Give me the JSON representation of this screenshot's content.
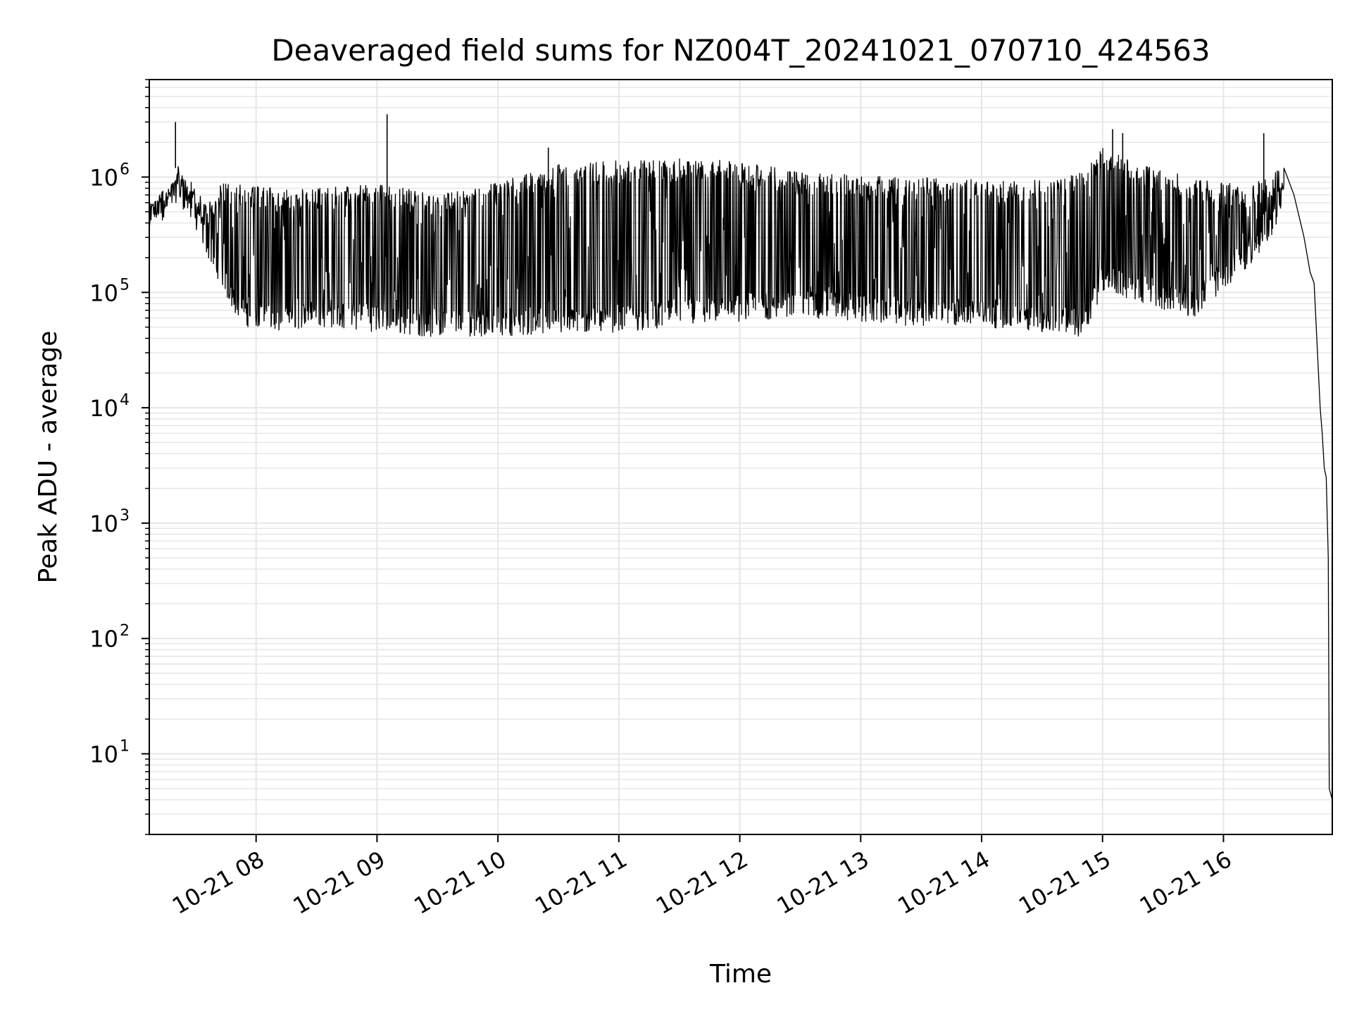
{
  "chart_data": {
    "type": "line",
    "title": "Deaveraged field sums for NZ004T_20241021_070710_424563",
    "xlabel": "Time",
    "ylabel": "Peak ADU - average",
    "yscale": "log",
    "ylim": [
      2,
      7000000
    ],
    "xlim": [
      "2024-10-21 07:07",
      "2024-10-21 16:54"
    ],
    "grid": true,
    "line_color": "#000000",
    "grid_color": "#e6e6e6",
    "y_ticks": [
      {
        "value": 10,
        "base": "10",
        "exp": "1"
      },
      {
        "value": 100,
        "base": "10",
        "exp": "2"
      },
      {
        "value": 1000,
        "base": "10",
        "exp": "3"
      },
      {
        "value": 10000,
        "base": "10",
        "exp": "4"
      },
      {
        "value": 100000,
        "base": "10",
        "exp": "5"
      },
      {
        "value": 1000000,
        "base": "10",
        "exp": "6"
      }
    ],
    "x_ticks": [
      {
        "time": "2024-10-21 08:00",
        "label": "10-21 08"
      },
      {
        "time": "2024-10-21 09:00",
        "label": "10-21 09"
      },
      {
        "time": "2024-10-21 10:00",
        "label": "10-21 10"
      },
      {
        "time": "2024-10-21 11:00",
        "label": "10-21 11"
      },
      {
        "time": "2024-10-21 12:00",
        "label": "10-21 12"
      },
      {
        "time": "2024-10-21 13:00",
        "label": "10-21 13"
      },
      {
        "time": "2024-10-21 14:00",
        "label": "10-21 14"
      },
      {
        "time": "2024-10-21 15:00",
        "label": "10-21 15"
      },
      {
        "time": "2024-10-21 16:00",
        "label": "10-21 16"
      }
    ],
    "series": [
      {
        "envelope": [
          {
            "time": "2024-10-21 07:07",
            "low": 350000,
            "high": 600000
          },
          {
            "time": "2024-10-21 07:15",
            "low": 400000,
            "high": 800000
          },
          {
            "time": "2024-10-21 07:20",
            "low": 600000,
            "high": 1400000
          },
          {
            "time": "2024-10-21 07:25",
            "low": 500000,
            "high": 1100000
          },
          {
            "time": "2024-10-21 07:30",
            "low": 350000,
            "high": 800000
          },
          {
            "time": "2024-10-21 07:36",
            "low": 200000,
            "high": 600000
          },
          {
            "time": "2024-10-21 07:42",
            "low": 120000,
            "high": 900000
          },
          {
            "time": "2024-10-21 07:48",
            "low": 70000,
            "high": 900000
          },
          {
            "time": "2024-10-21 07:55",
            "low": 50000,
            "high": 850000
          },
          {
            "time": "2024-10-21 08:10",
            "low": 45000,
            "high": 800000
          },
          {
            "time": "2024-10-21 08:30",
            "low": 50000,
            "high": 800000
          },
          {
            "time": "2024-10-21 09:00",
            "low": 45000,
            "high": 900000
          },
          {
            "time": "2024-10-21 09:30",
            "low": 40000,
            "high": 700000
          },
          {
            "time": "2024-10-21 10:00",
            "low": 42000,
            "high": 900000
          },
          {
            "time": "2024-10-21 10:30",
            "low": 42000,
            "high": 1300000
          },
          {
            "time": "2024-10-21 11:00",
            "low": 45000,
            "high": 1400000
          },
          {
            "time": "2024-10-21 11:30",
            "low": 50000,
            "high": 1450000
          },
          {
            "time": "2024-10-21 12:00",
            "low": 55000,
            "high": 1400000
          },
          {
            "time": "2024-10-21 12:30",
            "low": 60000,
            "high": 1100000
          },
          {
            "time": "2024-10-21 13:00",
            "low": 55000,
            "high": 1050000
          },
          {
            "time": "2024-10-21 13:30",
            "low": 50000,
            "high": 1000000
          },
          {
            "time": "2024-10-21 14:00",
            "low": 50000,
            "high": 950000
          },
          {
            "time": "2024-10-21 14:30",
            "low": 45000,
            "high": 950000
          },
          {
            "time": "2024-10-21 14:50",
            "low": 40000,
            "high": 1100000
          },
          {
            "time": "2024-10-21 15:00",
            "low": 100000,
            "high": 1800000
          },
          {
            "time": "2024-10-21 15:20",
            "low": 80000,
            "high": 1300000
          },
          {
            "time": "2024-10-21 15:45",
            "low": 60000,
            "high": 1000000
          },
          {
            "time": "2024-10-21 16:10",
            "low": 150000,
            "high": 850000
          },
          {
            "time": "2024-10-21 16:25",
            "low": 300000,
            "high": 1100000
          },
          {
            "time": "2024-10-21 16:30",
            "low": 700000,
            "high": 1250000
          }
        ],
        "tail": [
          {
            "time": "2024-10-21 16:30",
            "value": 1200000
          },
          {
            "time": "2024-10-21 16:35",
            "value": 700000
          },
          {
            "time": "2024-10-21 16:40",
            "value": 300000
          },
          {
            "time": "2024-10-21 16:43",
            "value": 150000
          },
          {
            "time": "2024-10-21 16:45",
            "value": 120000
          },
          {
            "time": "2024-10-21 16:48",
            "value": 10000
          },
          {
            "time": "2024-10-21 16:49",
            "value": 6000
          },
          {
            "time": "2024-10-21 16:50",
            "value": 3000
          },
          {
            "time": "2024-10-21 16:51",
            "value": 2500
          },
          {
            "time": "2024-10-21 16:52",
            "value": 500
          },
          {
            "time": "2024-10-21 16:52:30",
            "value": 5
          },
          {
            "time": "2024-10-21 16:54",
            "value": 4
          }
        ],
        "spikes": [
          {
            "time": "2024-10-21 07:20",
            "value": 3000000
          },
          {
            "time": "2024-10-21 09:05",
            "value": 3500000
          },
          {
            "time": "2024-10-21 10:25",
            "value": 1800000
          },
          {
            "time": "2024-10-21 15:05",
            "value": 2600000
          },
          {
            "time": "2024-10-21 15:10",
            "value": 2400000
          },
          {
            "time": "2024-10-21 16:20",
            "value": 2400000
          }
        ]
      }
    ]
  }
}
